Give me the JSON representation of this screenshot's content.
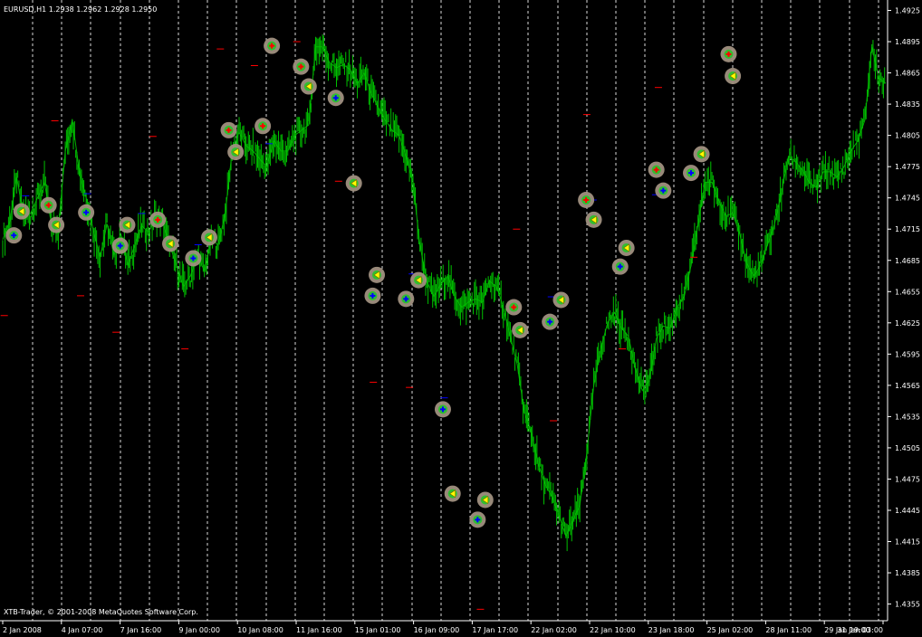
{
  "window": {
    "symbol_info": "EURUSD,H1  1.2938 1.2962 1.2928 1.2950",
    "copyright": "XTB-Trader, © 2001-2008 MetaQuotes Software Corp."
  },
  "colors": {
    "background": "#000000",
    "price": "#00c000",
    "grid": "#ffffff",
    "axis": "#ffffff",
    "upper_marker": "#ff0000",
    "lower_marker": "#0000ff",
    "signal_circle": "#a09080"
  },
  "chart_data": {
    "type": "line",
    "title": "EURUSD,H1  1.2938 1.2962 1.2928 1.2950",
    "ylim": [
      1.4339,
      1.4935
    ],
    "y_ticks": [
      "1.4925",
      "1.4895",
      "1.4865",
      "1.4835",
      "1.4805",
      "1.4775",
      "1.4745",
      "1.4715",
      "1.4685",
      "1.4655",
      "1.4625",
      "1.4595",
      "1.4565",
      "1.4535",
      "1.4505",
      "1.4475",
      "1.4445",
      "1.4415",
      "1.4385",
      "1.4355"
    ],
    "x_ticks": [
      "2 Jan 2008",
      "4 Jan 07:00",
      "7 Jan 16:00",
      "9 Jan 00:00",
      "10 Jan 08:00",
      "11 Jan 16:00",
      "15 Jan 01:00",
      "16 Jan 09:00",
      "17 Jan 17:00",
      "22 Jan 02:00",
      "22 Jan 10:00",
      "23 Jan 18:00",
      "25 Jan 02:00",
      "28 Jan 11:00",
      "29 Jan 19:00",
      "31 Jan 03:00"
    ],
    "grid": "vertical-dashed",
    "series": [
      {
        "values": [
          1.4705,
          1.4722,
          1.4765,
          1.4728,
          1.473,
          1.4745,
          1.476,
          1.472,
          1.4715,
          1.479,
          1.482,
          1.4772,
          1.4745,
          1.4715,
          1.4688,
          1.472,
          1.469,
          1.471,
          1.468,
          1.47,
          1.4718,
          1.4712,
          1.4728,
          1.4722,
          1.47,
          1.468,
          1.466,
          1.467,
          1.469,
          1.4675,
          1.4705,
          1.47,
          1.473,
          1.479,
          1.4808,
          1.4795,
          1.479,
          1.4782,
          1.4775,
          1.48,
          1.479,
          1.479,
          1.4805,
          1.481,
          1.4815,
          1.489,
          1.489,
          1.4875,
          1.487,
          1.4873,
          1.4868,
          1.4855,
          1.4865,
          1.4845,
          1.4832,
          1.482,
          1.481,
          1.4805,
          1.4785,
          1.476,
          1.47,
          1.4665,
          1.465,
          1.4662,
          1.467,
          1.465,
          1.464,
          1.4645,
          1.4648,
          1.4645,
          1.4665,
          1.466,
          1.464,
          1.4612,
          1.4585,
          1.454,
          1.452,
          1.449,
          1.447,
          1.4458,
          1.444,
          1.442,
          1.4435,
          1.445,
          1.45,
          1.4565,
          1.46,
          1.4625,
          1.4635,
          1.462,
          1.4612,
          1.458,
          1.456,
          1.457,
          1.461,
          1.4622,
          1.462,
          1.464,
          1.465,
          1.468,
          1.472,
          1.476,
          1.476,
          1.4742,
          1.4728,
          1.473,
          1.471,
          1.4682,
          1.467,
          1.468,
          1.47,
          1.472,
          1.475,
          1.4785,
          1.478,
          1.4772,
          1.476,
          1.4755,
          1.477,
          1.477,
          1.4765,
          1.4775,
          1.479,
          1.48,
          1.482,
          1.489,
          1.486,
          1.4855
        ]
      }
    ],
    "upper_markers": [
      {
        "x": 0.22,
        "y": 1.4632
      },
      {
        "x": 7.5,
        "y": 1.4819
      },
      {
        "x": 11.2,
        "y": 1.4651
      },
      {
        "x": 16.3,
        "y": 1.4616
      },
      {
        "x": 21.6,
        "y": 1.4804
      },
      {
        "x": 26.2,
        "y": 1.46
      },
      {
        "x": 31.3,
        "y": 1.4888
      },
      {
        "x": 36.2,
        "y": 1.4872
      },
      {
        "x": 42.3,
        "y": 1.4895
      },
      {
        "x": 48.3,
        "y": 1.4761
      },
      {
        "x": 53.3,
        "y": 1.4568
      },
      {
        "x": 58.5,
        "y": 1.4563
      },
      {
        "x": 64.3,
        "y": 1.4458
      },
      {
        "x": 68.7,
        "y": 1.435
      },
      {
        "x": 73.9,
        "y": 1.4715
      },
      {
        "x": 79.2,
        "y": 1.4531
      },
      {
        "x": 84.0,
        "y": 1.4825
      },
      {
        "x": 89.1,
        "y": 1.46
      },
      {
        "x": 94.3,
        "y": 1.4851
      },
      {
        "x": 99.4,
        "y": 1.4688
      }
    ],
    "lower_markers": [
      {
        "x": 3.3,
        "y": 1.4747
      },
      {
        "x": 12.2,
        "y": 1.4749
      },
      {
        "x": 20.0,
        "y": 1.473
      },
      {
        "x": 28.1,
        "y": 1.47
      },
      {
        "x": 38.3,
        "y": 1.4797
      },
      {
        "x": 48.3,
        "y": 1.4838
      },
      {
        "x": 58.9,
        "y": 1.4672
      },
      {
        "x": 63.5,
        "y": 1.4553
      },
      {
        "x": 69.1,
        "y": 1.4453
      },
      {
        "x": 78.9,
        "y": 1.465
      },
      {
        "x": 84.9,
        "y": 1.4743
      },
      {
        "x": 93.9,
        "y": 1.4748
      },
      {
        "x": 100.8,
        "y": 1.4786
      }
    ],
    "signals": [
      {
        "x": 1.6,
        "y": 1.4709,
        "kind": "buy"
      },
      {
        "x": 2.7,
        "y": 1.4732,
        "kind": "exit"
      },
      {
        "x": 6.6,
        "y": 1.4738,
        "kind": "sell"
      },
      {
        "x": 7.7,
        "y": 1.4719,
        "kind": "exit"
      },
      {
        "x": 12.0,
        "y": 1.4731,
        "kind": "buy"
      },
      {
        "x": 16.9,
        "y": 1.4699,
        "kind": "buy"
      },
      {
        "x": 17.9,
        "y": 1.4719,
        "kind": "exit"
      },
      {
        "x": 22.3,
        "y": 1.4724,
        "kind": "sell"
      },
      {
        "x": 24.1,
        "y": 1.4701,
        "kind": "exit"
      },
      {
        "x": 27.4,
        "y": 1.4687,
        "kind": "buy"
      },
      {
        "x": 29.7,
        "y": 1.4707,
        "kind": "exit"
      },
      {
        "x": 32.5,
        "y": 1.481,
        "kind": "sell"
      },
      {
        "x": 33.5,
        "y": 1.4789,
        "kind": "exit"
      },
      {
        "x": 37.4,
        "y": 1.4814,
        "kind": "sell"
      },
      {
        "x": 38.7,
        "y": 1.4891,
        "kind": "sell"
      },
      {
        "x": 42.9,
        "y": 1.4871,
        "kind": "sell"
      },
      {
        "x": 44.0,
        "y": 1.4852,
        "kind": "exit"
      },
      {
        "x": 47.9,
        "y": 1.4841,
        "kind": "buy"
      },
      {
        "x": 50.5,
        "y": 1.4759,
        "kind": "exit"
      },
      {
        "x": 53.2,
        "y": 1.4651,
        "kind": "buy"
      },
      {
        "x": 53.8,
        "y": 1.4671,
        "kind": "exit"
      },
      {
        "x": 58.0,
        "y": 1.4648,
        "kind": "buy"
      },
      {
        "x": 59.8,
        "y": 1.4666,
        "kind": "exit"
      },
      {
        "x": 63.3,
        "y": 1.4542,
        "kind": "buy"
      },
      {
        "x": 64.7,
        "y": 1.4461,
        "kind": "exit"
      },
      {
        "x": 68.3,
        "y": 1.4436,
        "kind": "buy"
      },
      {
        "x": 69.4,
        "y": 1.4455,
        "kind": "exit"
      },
      {
        "x": 73.5,
        "y": 1.464,
        "kind": "sell"
      },
      {
        "x": 74.4,
        "y": 1.4618,
        "kind": "exit"
      },
      {
        "x": 78.7,
        "y": 1.4626,
        "kind": "buy"
      },
      {
        "x": 80.3,
        "y": 1.4647,
        "kind": "exit"
      },
      {
        "x": 83.9,
        "y": 1.4743,
        "kind": "sell"
      },
      {
        "x": 85.0,
        "y": 1.4724,
        "kind": "exit"
      },
      {
        "x": 88.8,
        "y": 1.4679,
        "kind": "buy"
      },
      {
        "x": 89.7,
        "y": 1.4697,
        "kind": "exit"
      },
      {
        "x": 94.0,
        "y": 1.4772,
        "kind": "sell"
      },
      {
        "x": 95.0,
        "y": 1.4752,
        "kind": "buy"
      },
      {
        "x": 99.0,
        "y": 1.4769,
        "kind": "buy"
      },
      {
        "x": 100.5,
        "y": 1.4787,
        "kind": "exit"
      },
      {
        "x": 104.4,
        "y": 1.4883,
        "kind": "sell"
      },
      {
        "x": 105.0,
        "y": 1.4862,
        "kind": "exit"
      }
    ]
  }
}
